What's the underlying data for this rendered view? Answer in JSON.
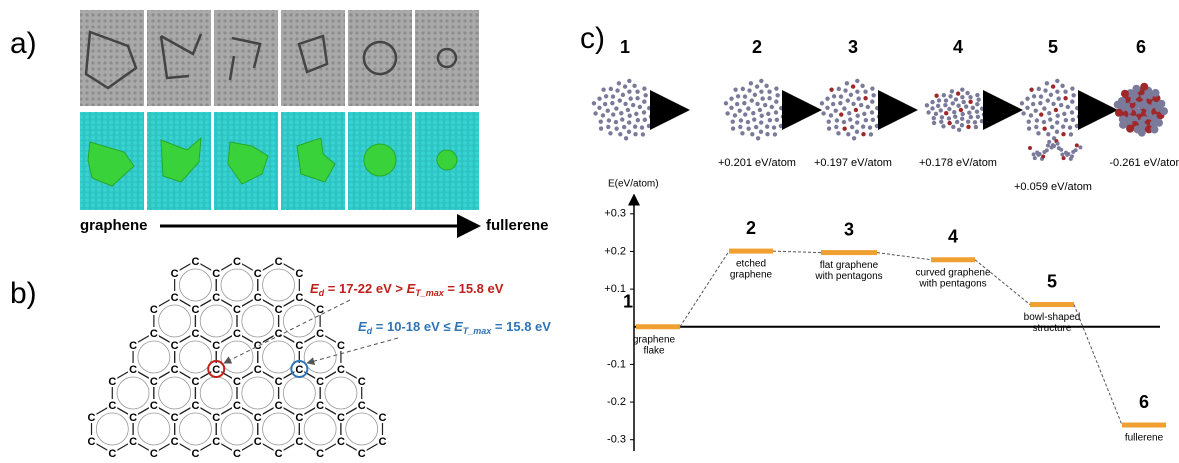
{
  "panel_a": {
    "label": "a)",
    "start": "graphene",
    "end": "fullerene"
  },
  "panel_b": {
    "label": "b)",
    "atom": "C",
    "annotation_red": [
      "E",
      "d",
      " = 17-22 eV > ",
      "E",
      "T_max",
      " = 15.8 eV"
    ],
    "annotation_blue": [
      "E",
      "d",
      " = 10-18 eV ≤ ",
      "E",
      "T_max",
      " = 15.8 eV"
    ]
  },
  "chart_data": {
    "type": "energy-levels",
    "panel_label": "c)",
    "y_label": "E(eV/atom)",
    "categories": [
      "1",
      "2",
      "3",
      "4",
      "5",
      "6"
    ],
    "values": [
      0,
      0.201,
      0.197,
      0.178,
      0.059,
      -0.261
    ],
    "value_labels": [
      null,
      "+0.201 eV/atom",
      "+0.197 eV/atom",
      "+0.178 eV/atom",
      "+0.059 eV/atom",
      "-0.261 eV/atom"
    ],
    "level_labels": [
      [
        "graphene",
        "flake"
      ],
      [
        "etched",
        "graphene"
      ],
      [
        "flat graphene",
        "with pentagons"
      ],
      [
        "curved graphene",
        "with pentagons"
      ],
      [
        "bowl-shaped",
        "structure"
      ],
      [
        "fullerene"
      ]
    ],
    "ylim": [
      -0.33,
      0.35
    ],
    "yticks": [
      {
        "value": 0.3,
        "label": "+0.3"
      },
      {
        "value": 0.2,
        "label": "+0.2"
      },
      {
        "value": 0.1,
        "label": "+0.1"
      },
      -0.1,
      -0.2,
      -0.3
    ],
    "color": "#f0a030"
  }
}
